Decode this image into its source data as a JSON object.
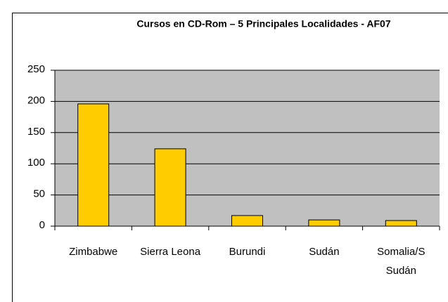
{
  "chart_data": {
    "type": "bar",
    "title": "Cursos en CD-Rom – 5 Principales Localidades - AF07",
    "categories": [
      "Zimbabwe",
      "Sierra Leona",
      "Burundi",
      "Sudán",
      "Somalia/S Sudán"
    ],
    "values": [
      196,
      124,
      17,
      10,
      9
    ],
    "color": "#ffcc00",
    "ylim": [
      0,
      250
    ],
    "yticks": [
      0,
      50,
      100,
      150,
      200,
      250
    ],
    "grid": true
  }
}
